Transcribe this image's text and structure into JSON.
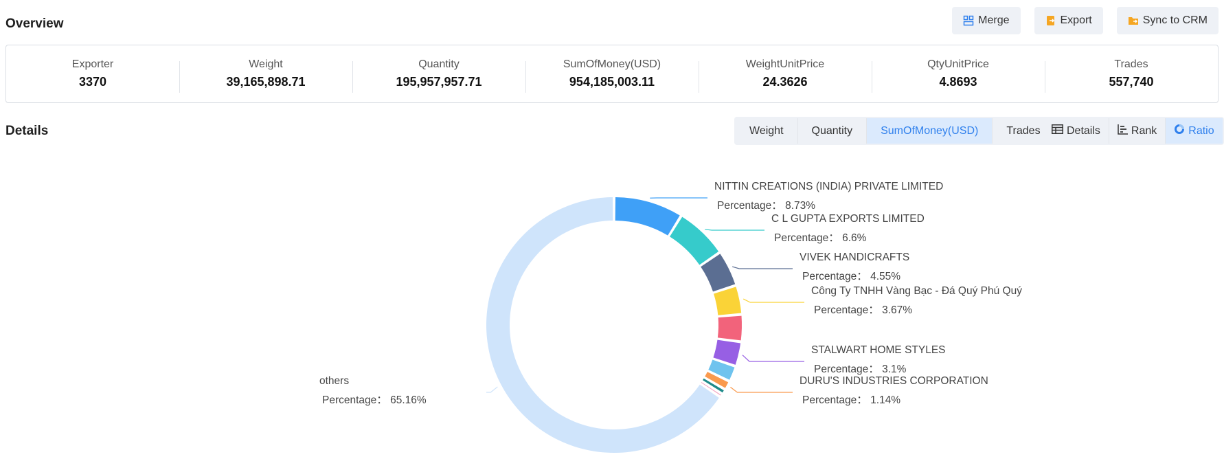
{
  "overview": {
    "title": "Overview",
    "actions": [
      {
        "label": "Merge",
        "icon": "merge-icon",
        "color": "#2f80ed"
      },
      {
        "label": "Export",
        "icon": "export-icon",
        "color": "#f5a623"
      },
      {
        "label": "Sync to CRM",
        "icon": "folder-sync-icon",
        "color": "#f5a623"
      }
    ],
    "stats": [
      {
        "label": "Exporter",
        "value": "3370"
      },
      {
        "label": "Weight",
        "value": "39,165,898.71"
      },
      {
        "label": "Quantity",
        "value": "195,957,957.71"
      },
      {
        "label": "SumOfMoney(USD)",
        "value": "954,185,003.11"
      },
      {
        "label": "WeightUnitPrice",
        "value": "24.3626"
      },
      {
        "label": "QtyUnitPrice",
        "value": "4.8693"
      },
      {
        "label": "Trades",
        "value": "557,740"
      }
    ]
  },
  "details": {
    "title": "Details",
    "metric_tabs": [
      "Weight",
      "Quantity",
      "SumOfMoney(USD)",
      "Trades"
    ],
    "active_metric": "SumOfMoney(USD)",
    "view_tabs": [
      {
        "label": "Details",
        "icon": "table-icon"
      },
      {
        "label": "Rank",
        "icon": "bar-rank-icon"
      },
      {
        "label": "Ratio",
        "icon": "donut-icon"
      }
    ],
    "active_view": "Ratio",
    "accent": "#2f80ed"
  },
  "chart_data": {
    "type": "pie",
    "subtype": "donut",
    "pct_prefix": "Percentage：",
    "slices": [
      {
        "name": "NITTIN CREATIONS (INDIA) PRIVATE LIMITED",
        "value": 8.73,
        "pct": "8.73%",
        "color": "#3fa0f7",
        "labeled": true
      },
      {
        "name": "C L GUPTA EXPORTS LIMITED",
        "value": 6.6,
        "pct": "6.6%",
        "color": "#36cbcb",
        "labeled": true
      },
      {
        "name": "VIVEK HANDICRAFTS",
        "value": 4.55,
        "pct": "4.55%",
        "color": "#5b6e92",
        "labeled": true
      },
      {
        "name": "Công Ty TNHH Vàng Bạc - Đá Quý Phú Quý",
        "value": 3.67,
        "pct": "3.67%",
        "color": "#fad337",
        "labeled": true
      },
      {
        "name": "",
        "value": 3.4,
        "pct": "",
        "color": "#f2637b",
        "labeled": false
      },
      {
        "name": "STALWART HOME STYLES",
        "value": 3.1,
        "pct": "3.1%",
        "color": "#975fe4",
        "labeled": true
      },
      {
        "name": "",
        "value": 2.0,
        "pct": "",
        "color": "#6fc3ee",
        "labeled": false
      },
      {
        "name": "DURU'S INDUSTRIES CORPORATION",
        "value": 1.14,
        "pct": "1.14%",
        "color": "#fa9a4e",
        "labeled": true
      },
      {
        "name": "",
        "value": 0.65,
        "pct": "",
        "color": "#1f8a8a",
        "labeled": false
      },
      {
        "name": "",
        "value": 0.45,
        "pct": "",
        "color": "#f3a0c0",
        "labeled": false
      },
      {
        "name": "others",
        "value": 65.16,
        "pct": "65.16%",
        "color": "#cfe4fb",
        "labeled": true
      }
    ]
  }
}
